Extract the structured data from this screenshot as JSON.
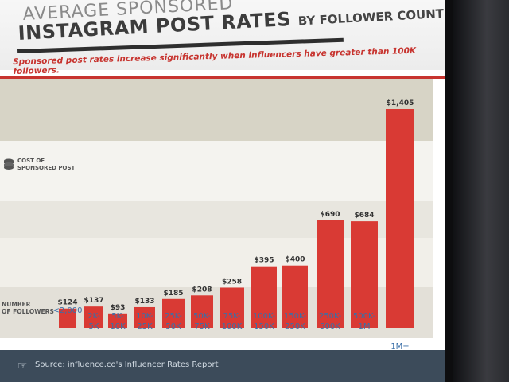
{
  "header": {
    "title_line1": "AVERAGE SPONSORED",
    "title_line2": "INSTAGRAM POST RATES",
    "title_suffix": "BY FOLLOWER COUNT",
    "tagline": "Sponsored post rates increase significantly when influencers have greater than 100K followers."
  },
  "axis": {
    "y_label_line1": "COST OF",
    "y_label_line2": "SPONSORED POST",
    "x_label_line1": "NUMBER",
    "x_label_line2": "OF FOLLOWERS"
  },
  "footer": {
    "source_text": "Source: influence.co's Influencer Rates Report"
  },
  "colors": {
    "bar": "#d93a34",
    "accent": "#c7342f",
    "category_text": "#3a6fa8"
  },
  "chart_data": {
    "type": "bar",
    "title": "AVERAGE SPONSORED INSTAGRAM POST RATES BY FOLLOWER COUNT",
    "subtitle": "Sponsored post rates increase significantly when influencers have greater than 100K followers.",
    "xlabel": "NUMBER OF FOLLOWERS",
    "ylabel": "COST OF SPONSORED POST",
    "categories": [
      "<2,000",
      "2K-5K",
      "5K-10K",
      "10K-25K",
      "25K-50K",
      "50K-75K",
      "75K-100K",
      "100K-150K",
      "150K-250K",
      "250K-500K",
      "500K-1M",
      "1M+"
    ],
    "category_lines": [
      [
        "<2,000"
      ],
      [
        "2K-",
        "5K"
      ],
      [
        "5K-",
        "10K"
      ],
      [
        "10K-",
        "25K"
      ],
      [
        "25K-",
        "50K"
      ],
      [
        "50K-",
        "75K"
      ],
      [
        "75K-",
        "100K"
      ],
      [
        "100K-",
        "150K"
      ],
      [
        "150K-",
        "250K"
      ],
      [
        "250K-",
        "500K"
      ],
      [
        "500K-",
        "1M"
      ],
      [
        "1M+"
      ]
    ],
    "values": [
      124,
      137,
      93,
      133,
      185,
      208,
      258,
      395,
      400,
      690,
      684,
      1405
    ],
    "value_labels": [
      "$124",
      "$137",
      "$93",
      "$133",
      "$185",
      "$208",
      "$258",
      "$395",
      "$400",
      "$690",
      "$684",
      "$1,405"
    ],
    "ylim": [
      0,
      1500
    ],
    "grid": false,
    "legend": "none"
  }
}
